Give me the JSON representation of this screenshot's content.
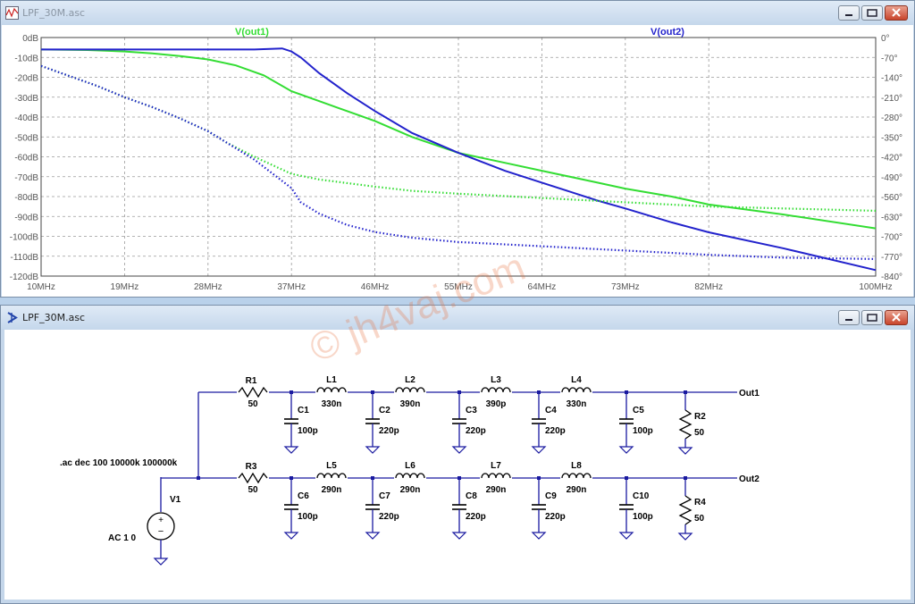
{
  "plot_window": {
    "title": "LPF_30M.asc",
    "controls": [
      "minimize",
      "maximize",
      "close"
    ]
  },
  "schematic_window": {
    "title": "LPF_30M.asc",
    "controls": [
      "minimize",
      "maximize",
      "close"
    ]
  },
  "watermark": "© jh4vaj.com",
  "chart_data": {
    "type": "line",
    "xscale": "linear",
    "xlim": [
      10,
      100
    ],
    "x_ticks": [
      "10MHz",
      "19MHz",
      "28MHz",
      "37MHz",
      "46MHz",
      "55MHz",
      "64MHz",
      "73MHz",
      "82MHz",
      "100MHz"
    ],
    "y_left_ticks": [
      "0dB",
      "-10dB",
      "-20dB",
      "-30dB",
      "-40dB",
      "-50dB",
      "-60dB",
      "-70dB",
      "-80dB",
      "-90dB",
      "-100dB",
      "-110dB",
      "-120dB"
    ],
    "y_right_ticks": [
      "0°",
      "-70°",
      "-140°",
      "-210°",
      "-280°",
      "-350°",
      "-420°",
      "-490°",
      "-560°",
      "-630°",
      "-700°",
      "-770°",
      "-840°"
    ],
    "ylim_left": [
      -120,
      0
    ],
    "ylim_right": [
      -840,
      0
    ],
    "grid": true,
    "grid_style": "dashed",
    "background": "#ffffff",
    "series": [
      {
        "name": "V(out1)",
        "color": "#33dd33",
        "kind": "magnitude",
        "points": [
          [
            10,
            -6
          ],
          [
            15,
            -6.3
          ],
          [
            19,
            -7
          ],
          [
            22,
            -8
          ],
          [
            25,
            -9.3
          ],
          [
            28,
            -11
          ],
          [
            31,
            -14
          ],
          [
            34,
            -19
          ],
          [
            37,
            -27
          ],
          [
            40,
            -32
          ],
          [
            46,
            -42
          ],
          [
            50,
            -50
          ],
          [
            55,
            -58
          ],
          [
            60,
            -63
          ],
          [
            64,
            -67
          ],
          [
            70,
            -73
          ],
          [
            73,
            -76
          ],
          [
            78,
            -80
          ],
          [
            82,
            -84
          ],
          [
            90,
            -89
          ],
          [
            100,
            -96
          ]
        ]
      },
      {
        "name": "V(out2)",
        "color": "#2222cc",
        "kind": "magnitude",
        "points": [
          [
            10,
            -6
          ],
          [
            19,
            -6
          ],
          [
            28,
            -6
          ],
          [
            33,
            -6
          ],
          [
            36,
            -5.5
          ],
          [
            37,
            -7
          ],
          [
            38,
            -10
          ],
          [
            40,
            -18
          ],
          [
            43,
            -28
          ],
          [
            46,
            -37
          ],
          [
            50,
            -48
          ],
          [
            55,
            -58
          ],
          [
            60,
            -67
          ],
          [
            64,
            -73
          ],
          [
            70,
            -82
          ],
          [
            73,
            -86
          ],
          [
            78,
            -93
          ],
          [
            82,
            -98
          ],
          [
            90,
            -106
          ],
          [
            100,
            -117
          ]
        ]
      },
      {
        "name": "V(out1)",
        "color": "#33dd33",
        "kind": "phase",
        "points": [
          [
            10,
            -100
          ],
          [
            13,
            -135
          ],
          [
            16,
            -170
          ],
          [
            19,
            -210
          ],
          [
            22,
            -245
          ],
          [
            25,
            -285
          ],
          [
            28,
            -330
          ],
          [
            30,
            -370
          ],
          [
            33,
            -420
          ],
          [
            36,
            -465
          ],
          [
            37,
            -480
          ],
          [
            40,
            -500
          ],
          [
            46,
            -525
          ],
          [
            50,
            -540
          ],
          [
            55,
            -550
          ],
          [
            64,
            -565
          ],
          [
            73,
            -580
          ],
          [
            82,
            -595
          ],
          [
            90,
            -602
          ],
          [
            100,
            -610
          ]
        ]
      },
      {
        "name": "V(out2)",
        "color": "#2222cc",
        "kind": "phase",
        "points": [
          [
            10,
            -100
          ],
          [
            13,
            -135
          ],
          [
            16,
            -170
          ],
          [
            19,
            -210
          ],
          [
            22,
            -245
          ],
          [
            25,
            -285
          ],
          [
            28,
            -330
          ],
          [
            30,
            -370
          ],
          [
            33,
            -430
          ],
          [
            35,
            -480
          ],
          [
            37,
            -530
          ],
          [
            38,
            -580
          ],
          [
            40,
            -620
          ],
          [
            43,
            -660
          ],
          [
            46,
            -685
          ],
          [
            50,
            -705
          ],
          [
            55,
            -720
          ],
          [
            64,
            -735
          ],
          [
            73,
            -750
          ],
          [
            82,
            -765
          ],
          [
            90,
            -775
          ],
          [
            100,
            -780
          ]
        ]
      }
    ]
  },
  "schematic": {
    "directive": ".ac dec 100 10000k 100000k",
    "source": {
      "name": "V1",
      "value": "AC 1 0"
    },
    "row1": [
      {
        "ref": "R1",
        "value": "50"
      },
      {
        "ref": "L1",
        "value": "330n"
      },
      {
        "ref": "L2",
        "value": "390n"
      },
      {
        "ref": "L3",
        "value": "390p"
      },
      {
        "ref": "L4",
        "value": "330n"
      },
      {
        "ref": "C1",
        "value": "100p"
      },
      {
        "ref": "C2",
        "value": "220p"
      },
      {
        "ref": "C3",
        "value": "220p"
      },
      {
        "ref": "C4",
        "value": "220p"
      },
      {
        "ref": "C5",
        "value": "100p"
      },
      {
        "ref": "R2",
        "value": "50"
      }
    ],
    "row2": [
      {
        "ref": "R3",
        "value": "50"
      },
      {
        "ref": "L5",
        "value": "290n"
      },
      {
        "ref": "L6",
        "value": "290n"
      },
      {
        "ref": "L7",
        "value": "290n"
      },
      {
        "ref": "L8",
        "value": "290n"
      },
      {
        "ref": "C6",
        "value": "100p"
      },
      {
        "ref": "C7",
        "value": "220p"
      },
      {
        "ref": "C8",
        "value": "220p"
      },
      {
        "ref": "C9",
        "value": "220p"
      },
      {
        "ref": "C10",
        "value": "100p"
      },
      {
        "ref": "R4",
        "value": "50"
      }
    ],
    "labels": {
      "out1": "Out1",
      "out2": "Out2"
    }
  }
}
